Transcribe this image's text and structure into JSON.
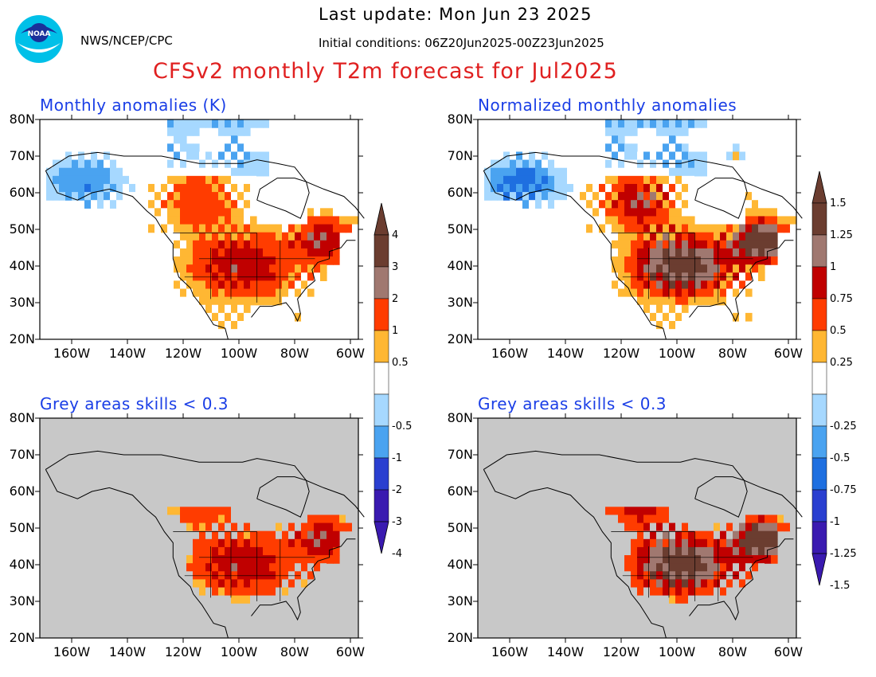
{
  "header": {
    "agency": "NWS/NCEP/CPC",
    "last_update": "Last update: Mon Jun 23 2025",
    "initial_conditions": "Initial conditions: 06Z20Jun2025-00Z23Jun2025",
    "title": "CFSv2 monthly T2m forecast for Jul2025",
    "logo_text": "NOAA"
  },
  "panels": {
    "top_left_title": "Monthly anomalies (K)",
    "top_right_title": "Normalized monthly anomalies",
    "bottom_left_title": "Grey areas skills < 0.3",
    "bottom_right_title": "Grey areas skills < 0.3"
  },
  "axes": {
    "lat_labels": [
      "80N",
      "70N",
      "60N",
      "50N",
      "40N",
      "30N",
      "20N"
    ],
    "lon_labels": [
      "160W",
      "140W",
      "120W",
      "100W",
      "80W",
      "60W"
    ]
  },
  "colorbar_left": {
    "labels": [
      "4",
      "3",
      "2",
      "1",
      "0.5",
      "-0.5",
      "-1",
      "-2",
      "-3",
      "-4"
    ]
  },
  "colorbar_right": {
    "labels": [
      "1.5",
      "1.25",
      "1",
      "0.75",
      "0.5",
      "0.25",
      "-0.25",
      "-0.5",
      "-0.75",
      "-1",
      "-1.25",
      "-1.5"
    ]
  },
  "colors": {
    "warm": [
      "#ffb733",
      "#ff3c00",
      "#c00000",
      "#a07870",
      "#6b3d30"
    ],
    "cool": [
      "#a6d8ff",
      "#4aa3f0",
      "#1e6fe0",
      "#2a3fd0",
      "#3a1ab0"
    ],
    "grey": "#c8c8c8",
    "title_red": "#e02020",
    "panel_title_blue": "#1a3ee6"
  }
}
